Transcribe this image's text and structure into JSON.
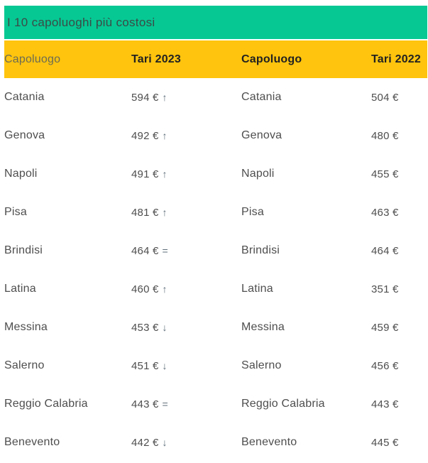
{
  "colors": {
    "title_bar_bg": "#06C893",
    "header_row_bg": "#FFC40D"
  },
  "chart_data": {
    "type": "table",
    "title": "I 10 capoluoghi più costosi",
    "columns": [
      "Capoluogo",
      "Tari 2023",
      "Capoluogo",
      "Tari 2022"
    ],
    "rows": [
      {
        "city_2023": "Catania",
        "tari_2023": "594 €",
        "trend_2023": "↑",
        "city_2022": "Catania",
        "tari_2022": "504 €"
      },
      {
        "city_2023": "Genova",
        "tari_2023": "492 €",
        "trend_2023": "↑",
        "city_2022": "Genova",
        "tari_2022": "480 €"
      },
      {
        "city_2023": "Napoli",
        "tari_2023": "491 €",
        "trend_2023": "↑",
        "city_2022": "Napoli",
        "tari_2022": "455 €"
      },
      {
        "city_2023": "Pisa",
        "tari_2023": "481 €",
        "trend_2023": "↑",
        "city_2022": "Pisa",
        "tari_2022": "463 €"
      },
      {
        "city_2023": "Brindisi",
        "tari_2023": "464 €",
        "trend_2023": "=",
        "city_2022": "Brindisi",
        "tari_2022": "464 €"
      },
      {
        "city_2023": "Latina",
        "tari_2023": "460 €",
        "trend_2023": "↑",
        "city_2022": "Latina",
        "tari_2022": "351 €"
      },
      {
        "city_2023": "Messina",
        "tari_2023": "453 €",
        "trend_2023": "↓",
        "city_2022": "Messina",
        "tari_2022": "459 €"
      },
      {
        "city_2023": "Salerno",
        "tari_2023": "451 €",
        "trend_2023": "↓",
        "city_2022": "Salerno",
        "tari_2022": "456 €"
      },
      {
        "city_2023": "Reggio Calabria",
        "tari_2023": "443 €",
        "trend_2023": "=",
        "city_2022": "Reggio Calabria",
        "tari_2022": "443 €"
      },
      {
        "city_2023": "Benevento",
        "tari_2023": "442 €",
        "trend_2023": "↓",
        "city_2022": "Benevento",
        "tari_2022": "445 €"
      }
    ]
  }
}
